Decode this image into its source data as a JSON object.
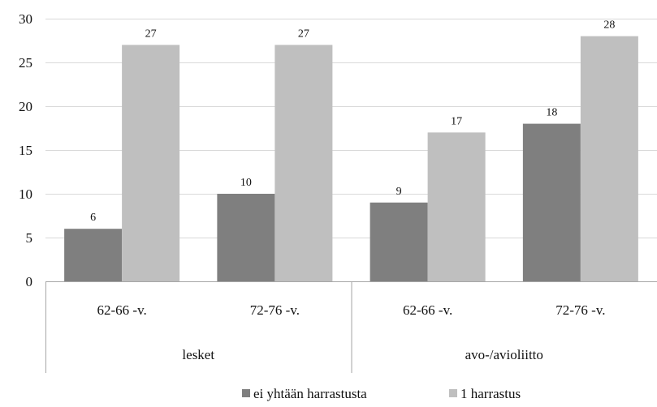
{
  "chart_data": {
    "type": "bar",
    "groups": [
      {
        "label": "lesket",
        "categories": [
          "62-66 -v.",
          "72-76 -v."
        ]
      },
      {
        "label": "avo-/avioliitto",
        "categories": [
          "62-66 -v.",
          "72-76 -v."
        ]
      }
    ],
    "series": [
      {
        "name": "ei yhtään harrastusta",
        "values": [
          6,
          10,
          9,
          18
        ],
        "color": "#7f7f7f"
      },
      {
        "name": "1 harrastus",
        "values": [
          27,
          27,
          17,
          28
        ],
        "color": "#bfbfbf"
      }
    ],
    "ylim": [
      0,
      30
    ],
    "yticks": [
      0,
      5,
      10,
      15,
      20,
      25,
      30
    ],
    "grid": true,
    "legend_position": "bottom"
  }
}
